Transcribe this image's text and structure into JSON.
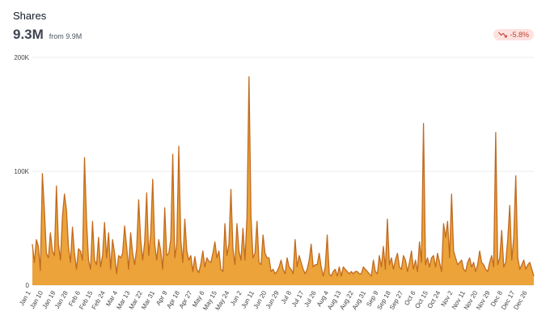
{
  "header": {
    "title": "Shares",
    "value": "9.3M",
    "from": "from 9.9M",
    "change": "-5.8%"
  },
  "colors": {
    "fill": "#eba33a",
    "line": "#c26b1f",
    "grid": "#eeeeee",
    "badge_bg": "#fde2e0",
    "badge_text": "#c2412f"
  },
  "icons": {
    "trend": "trend-down-icon"
  },
  "chart_data": {
    "type": "area",
    "ylim": [
      0,
      200000
    ],
    "yticks": [
      0,
      100000,
      200000
    ],
    "ytick_labels": [
      "0",
      "100K",
      "200K"
    ],
    "xtick_labels": [
      "Jan 1",
      "Jan 10",
      "Jan 19",
      "Jan 28",
      "Feb 6",
      "Feb 15",
      "Feb 24",
      "Mar 4",
      "Mar 13",
      "Mar 22",
      "Mar 31",
      "Apr 9",
      "Apr 18",
      "Apr 27",
      "May 6",
      "May 15",
      "May 24",
      "Jun 2",
      "Jun 11",
      "Jun 20",
      "Jun 29",
      "Jul 8",
      "Jul 17",
      "Jul 26",
      "Aug 4",
      "Aug 13",
      "Aug 22",
      "Aug 31",
      "Sep 9",
      "Sep 18",
      "Sep 27",
      "Oct 6",
      "Oct 15",
      "Oct 24",
      "Nov 2",
      "Nov 11",
      "Nov 20",
      "Nov 29",
      "Dec 8",
      "Dec 17",
      "Dec 26"
    ],
    "grid": true,
    "values": [
      36000,
      20000,
      40000,
      34000,
      13000,
      98000,
      66000,
      28000,
      24000,
      46000,
      30000,
      26000,
      87000,
      36000,
      22000,
      60000,
      80000,
      66000,
      34000,
      20000,
      51000,
      28000,
      14000,
      32000,
      30000,
      22000,
      112000,
      57000,
      22000,
      14000,
      56000,
      22000,
      18000,
      42000,
      16000,
      26000,
      55000,
      24000,
      46000,
      14000,
      40000,
      28000,
      10000,
      26000,
      24000,
      28000,
      52000,
      34000,
      14000,
      46000,
      28000,
      18000,
      32000,
      75000,
      40000,
      22000,
      38000,
      81000,
      26000,
      45000,
      93000,
      36000,
      22000,
      40000,
      30000,
      14000,
      68000,
      26000,
      28000,
      40000,
      115000,
      24000,
      36000,
      122000,
      40000,
      20000,
      58000,
      30000,
      22000,
      26000,
      12000,
      25000,
      14000,
      11000,
      19000,
      30000,
      16000,
      24000,
      21000,
      20000,
      28000,
      38000,
      24000,
      30000,
      14000,
      12000,
      54000,
      26000,
      36000,
      84000,
      32000,
      18000,
      54000,
      30000,
      22000,
      50000,
      22000,
      60000,
      183000,
      60000,
      24000,
      28000,
      56000,
      20000,
      18000,
      44000,
      28000,
      24000,
      24000,
      12000,
      14000,
      10000,
      12000,
      16000,
      22000,
      14000,
      10000,
      24000,
      16000,
      14000,
      10000,
      40000,
      16000,
      26000,
      20000,
      14000,
      10000,
      14000,
      22000,
      36000,
      16000,
      18000,
      18000,
      28000,
      16000,
      8000,
      16000,
      44000,
      10000,
      8000,
      12000,
      14000,
      8000,
      16000,
      8000,
      16000,
      14000,
      12000,
      10000,
      12000,
      10000,
      12000,
      12000,
      10000,
      10000,
      16000,
      14000,
      12000,
      10000,
      8000,
      22000,
      12000,
      10000,
      26000,
      16000,
      34000,
      14000,
      58000,
      18000,
      24000,
      14000,
      22000,
      28000,
      16000,
      14000,
      26000,
      22000,
      12000,
      20000,
      30000,
      14000,
      22000,
      12000,
      38000,
      20000,
      142000,
      18000,
      24000,
      16000,
      24000,
      26000,
      16000,
      28000,
      20000,
      12000,
      54000,
      42000,
      56000,
      24000,
      80000,
      30000,
      24000,
      18000,
      20000,
      22000,
      14000,
      12000,
      20000,
      24000,
      16000,
      20000,
      12000,
      18000,
      30000,
      20000,
      18000,
      14000,
      12000,
      20000,
      26000,
      16000,
      134000,
      18000,
      24000,
      48000,
      16000,
      20000,
      40000,
      70000,
      22000,
      42000,
      96000,
      24000,
      14000,
      18000,
      22000,
      14000,
      18000,
      20000,
      14000,
      8000
    ]
  }
}
